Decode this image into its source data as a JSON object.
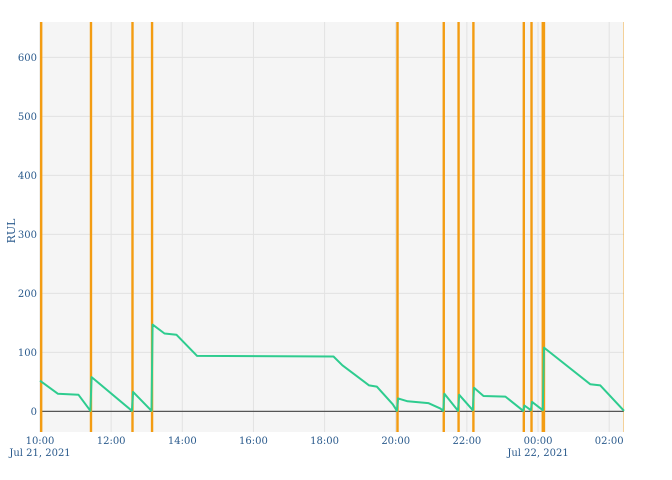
{
  "chart_data": {
    "type": "line",
    "title": "",
    "xlabel": "",
    "ylabel": "RUL",
    "x_axis_type": "time",
    "xlim": [
      "2021-07-21 10:00",
      "2021-07-22 02:25"
    ],
    "ylim": [
      -35,
      660
    ],
    "grid": true,
    "legend": "none",
    "x_ticks": [
      {
        "time": "2021-07-21 10:00",
        "label": "10:00",
        "sublabel": "Jul 21, 2021"
      },
      {
        "time": "2021-07-21 12:00",
        "label": "12:00",
        "sublabel": ""
      },
      {
        "time": "2021-07-21 14:00",
        "label": "14:00",
        "sublabel": ""
      },
      {
        "time": "2021-07-21 16:00",
        "label": "16:00",
        "sublabel": ""
      },
      {
        "time": "2021-07-21 18:00",
        "label": "18:00",
        "sublabel": ""
      },
      {
        "time": "2021-07-21 20:00",
        "label": "20:00",
        "sublabel": ""
      },
      {
        "time": "2021-07-21 22:00",
        "label": "22:00",
        "sublabel": ""
      },
      {
        "time": "2021-07-22 00:00",
        "label": "00:00",
        "sublabel": "Jul 22, 2021"
      },
      {
        "time": "2021-07-22 02:00",
        "label": "02:00",
        "sublabel": ""
      }
    ],
    "y_ticks": [
      0,
      100,
      200,
      300,
      400,
      500,
      600
    ],
    "colors": {
      "rul_line": "#2ecc8f",
      "failure_marker": "#f39c12",
      "zero_line": "#555555",
      "plot_bg": "#f5f5f5",
      "grid": "#e2e2e2",
      "tick_text": "#2a5a8c"
    },
    "series": [
      {
        "values": [
          [
            "2021-07-21 10:00",
            52
          ],
          [
            "2021-07-21 10:30",
            30
          ],
          [
            "2021-07-21 11:05",
            28
          ],
          [
            "2021-07-21 11:25",
            1
          ],
          [
            "2021-07-21 11:27",
            58
          ],
          [
            "2021-07-21 12:35",
            1
          ],
          [
            "2021-07-21 12:37",
            33
          ],
          [
            "2021-07-21 13:08",
            1
          ],
          [
            "2021-07-21 13:10",
            147
          ],
          [
            "2021-07-21 13:30",
            132
          ],
          [
            "2021-07-21 13:50",
            130
          ],
          [
            "2021-07-21 14:25",
            94
          ],
          [
            "2021-07-21 18:15",
            93
          ],
          [
            "2021-07-21 18:30",
            78
          ],
          [
            "2021-07-21 19:15",
            44
          ],
          [
            "2021-07-21 19:28",
            42
          ],
          [
            "2021-07-21 19:55",
            12
          ],
          [
            "2021-07-21 20:02",
            1
          ],
          [
            "2021-07-21 20:04",
            22
          ],
          [
            "2021-07-21 20:20",
            17
          ],
          [
            "2021-07-21 20:55",
            14
          ],
          [
            "2021-07-21 21:15",
            5
          ],
          [
            "2021-07-21 21:20",
            1
          ],
          [
            "2021-07-21 21:22",
            30
          ],
          [
            "2021-07-21 21:45",
            1
          ],
          [
            "2021-07-21 21:47",
            28
          ],
          [
            "2021-07-21 22:10",
            2
          ],
          [
            "2021-07-21 22:12",
            40
          ],
          [
            "2021-07-21 22:28",
            26
          ],
          [
            "2021-07-21 23:05",
            25
          ],
          [
            "2021-07-21 23:35",
            1
          ],
          [
            "2021-07-21 23:37",
            10
          ],
          [
            "2021-07-21 23:48",
            2
          ],
          [
            "2021-07-21 23:50",
            16
          ],
          [
            "2021-07-22 00:08",
            2
          ],
          [
            "2021-07-22 00:10",
            108
          ],
          [
            "2021-07-22 01:28",
            46
          ],
          [
            "2021-07-22 01:45",
            44
          ],
          [
            "2021-07-22 02:25",
            1
          ]
        ]
      }
    ],
    "failure_markers": [
      "2021-07-21 10:02",
      "2021-07-21 11:26",
      "2021-07-21 12:36",
      "2021-07-21 13:09",
      "2021-07-21 20:03",
      "2021-07-21 21:21",
      "2021-07-21 21:46",
      "2021-07-21 22:11",
      "2021-07-21 23:36",
      "2021-07-21 23:49",
      "2021-07-22 00:08",
      "2021-07-22 00:10"
    ]
  }
}
